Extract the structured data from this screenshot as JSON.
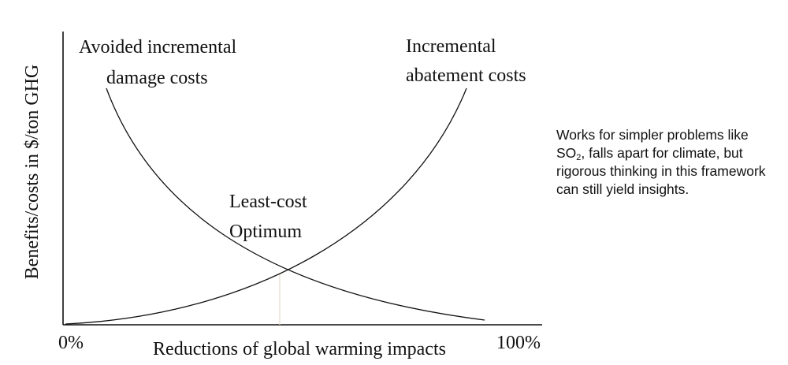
{
  "diagram": {
    "y_axis_label": "Benefits/costs in $/ton GHG",
    "x_axis_label": "Reductions of global warming impacts",
    "x_min_label": "0%",
    "x_max_label": "100%",
    "curves": [
      {
        "id": "damage",
        "label_lines": [
          "Avoided incremental",
          "damage costs"
        ],
        "shape": "decreasing convex"
      },
      {
        "id": "abatement",
        "label_lines": [
          "Incremental",
          "abatement costs"
        ],
        "shape": "increasing convex"
      }
    ],
    "intersection_label_lines": [
      "Least-cost",
      "Optimum"
    ],
    "colors": {
      "line": "#111111",
      "optimum_guide": "#e6d9c8"
    }
  },
  "note": {
    "before_sub": "Works for simpler problems like SO",
    "subscript": "2",
    "after_sub": ", falls apart for climate, but rigorous thinking in this framework can still yield insights."
  }
}
